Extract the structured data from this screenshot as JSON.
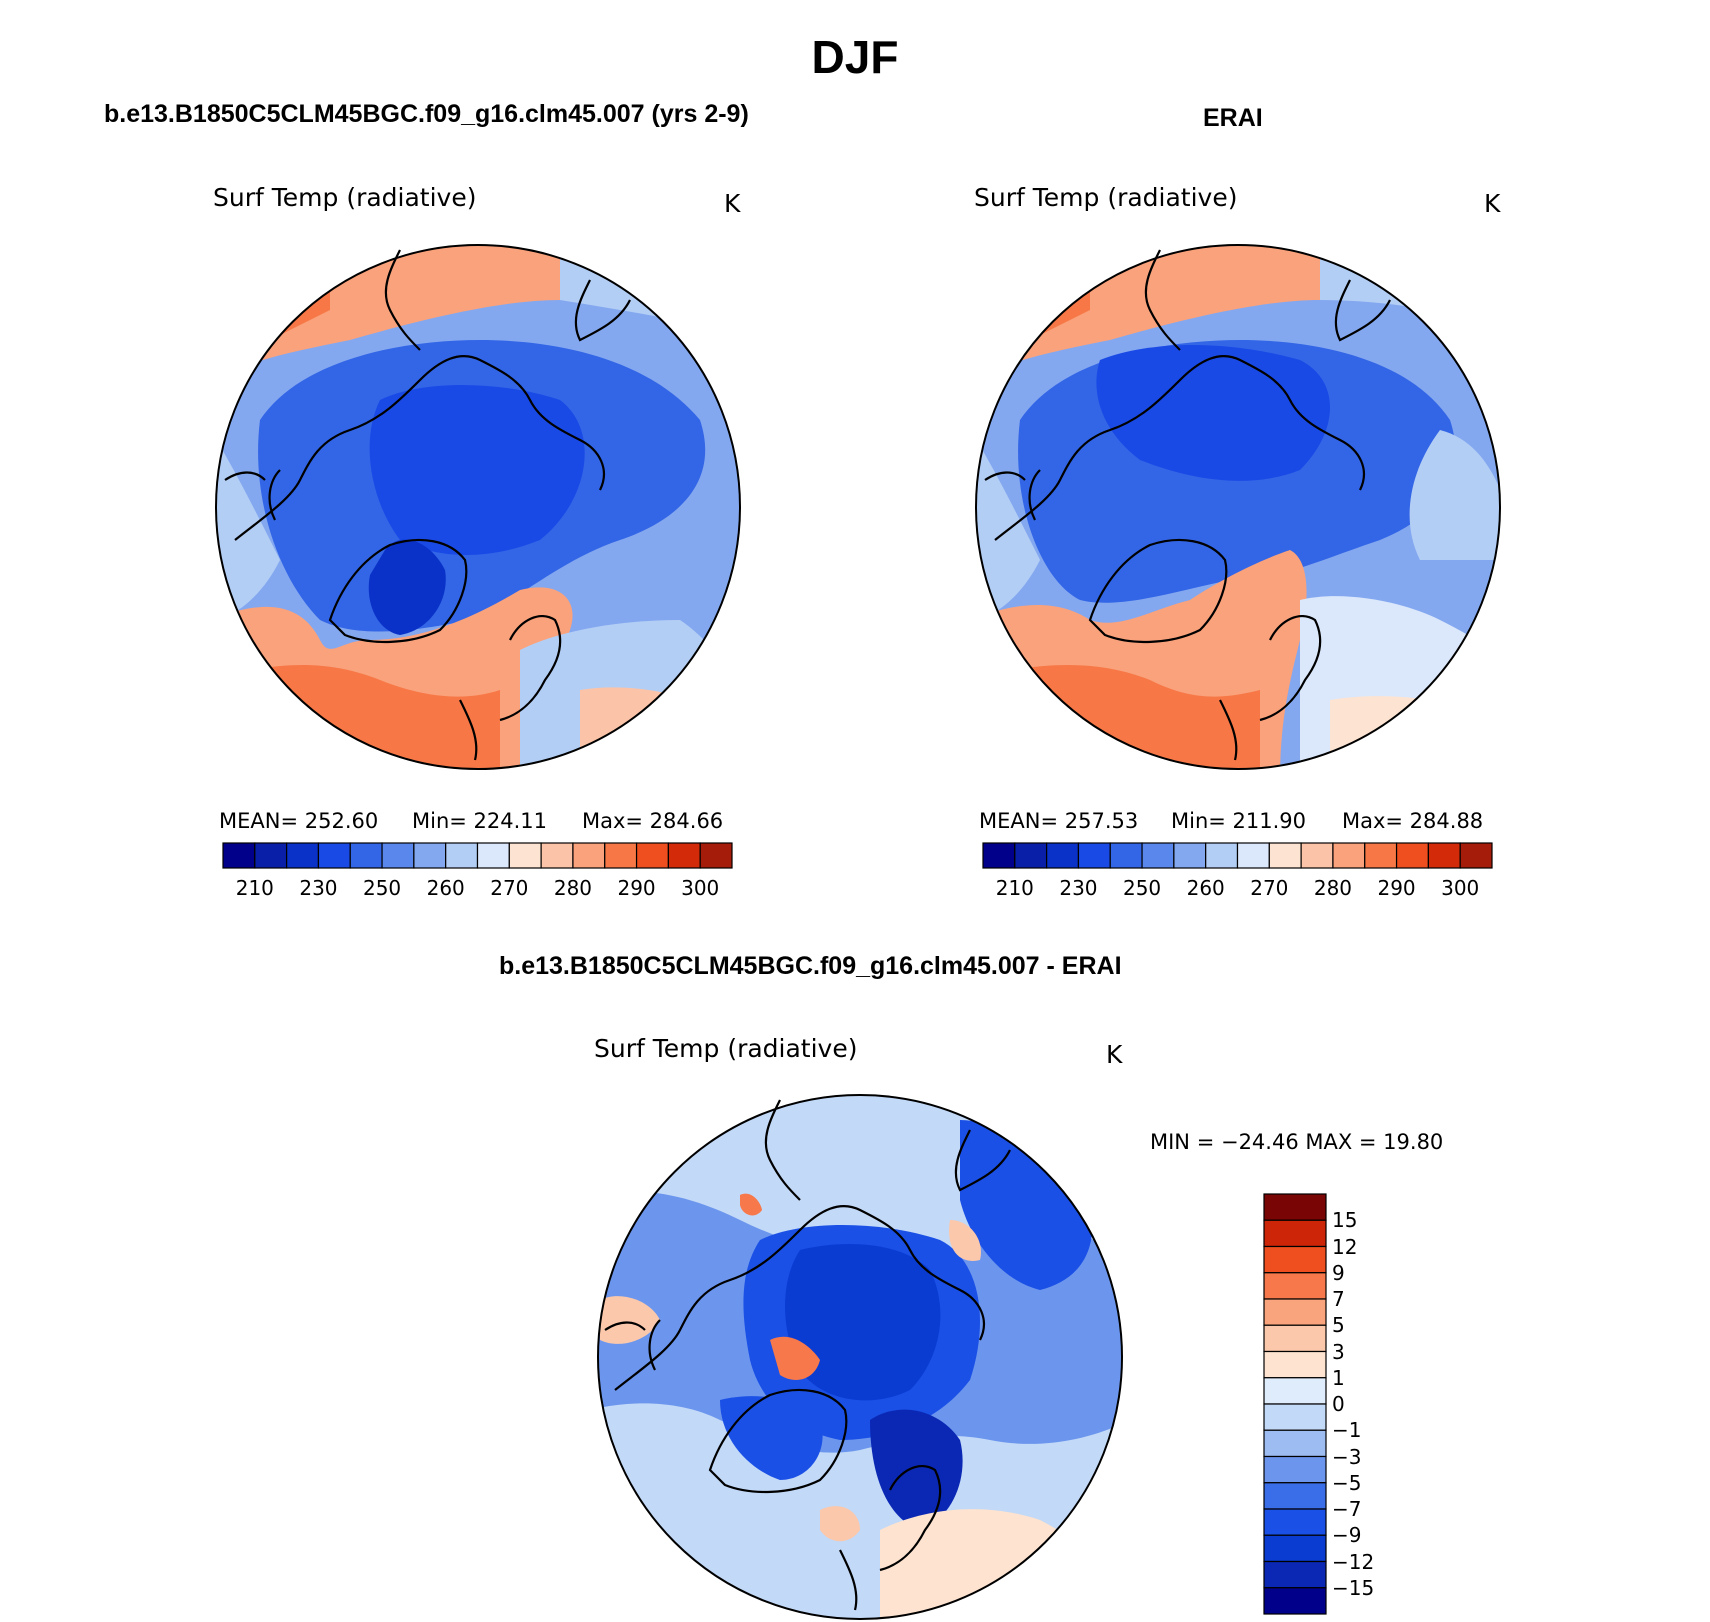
{
  "page": {
    "title": "DJF"
  },
  "colors": {
    "abs_scale": [
      "#00008b",
      "#0a1fa8",
      "#0a32c8",
      "#1a4ae6",
      "#3366e6",
      "#5a87ec",
      "#84a8f0",
      "#b3cef5",
      "#dbe8fb",
      "#fde4d2",
      "#fbc4a8",
      "#f9a27c",
      "#f77846",
      "#ef4f1e",
      "#d32a0a",
      "#a51c0a",
      "#7a0505"
    ],
    "diff_scale": [
      "#00008b",
      "#0a28b4",
      "#0a3cd2",
      "#1a50e6",
      "#3a6de8",
      "#6c96ee",
      "#9cbcf2",
      "#c2d9f7",
      "#dfecfb",
      "#fde3d0",
      "#fbc8ac",
      "#f9a47c",
      "#f7784a",
      "#ef4f1e",
      "#cc2508",
      "#7a0505"
    ]
  },
  "panels": [
    {
      "id": "model",
      "title": "b.e13.B1850C5CLM45BGC.f09_g16.clm45.007 (yrs 2-9)",
      "variable": "Surf Temp (radiative)",
      "units": "K",
      "stats": {
        "mean": "MEAN=  252.60",
        "min": "Min=  224.11",
        "max": "Max=  284.66"
      },
      "colorbar_ticks": [
        "210",
        "230",
        "250",
        "260",
        "270",
        "280",
        "290",
        "300"
      ]
    },
    {
      "id": "obs",
      "title": "ERAI",
      "variable": "Surf Temp (radiative)",
      "units": "K",
      "stats": {
        "mean": "MEAN=  257.53",
        "min": "Min=  211.90",
        "max": "Max=  284.88"
      },
      "colorbar_ticks": [
        "210",
        "230",
        "250",
        "260",
        "270",
        "280",
        "290",
        "300"
      ]
    },
    {
      "id": "diff",
      "title": "b.e13.B1850C5CLM45BGC.f09_g16.clm45.007 - ERAI",
      "variable": "Surf Temp (radiative)",
      "units": "K",
      "stats": {
        "minmax": "MIN = −24.46 MAX =   19.80"
      },
      "colorbar_ticks": [
        "15",
        "12",
        "9",
        "7",
        "5",
        "3",
        "1",
        "0",
        "−1",
        "−3",
        "−5",
        "−7",
        "−9",
        "−12",
        "−15"
      ]
    }
  ]
}
